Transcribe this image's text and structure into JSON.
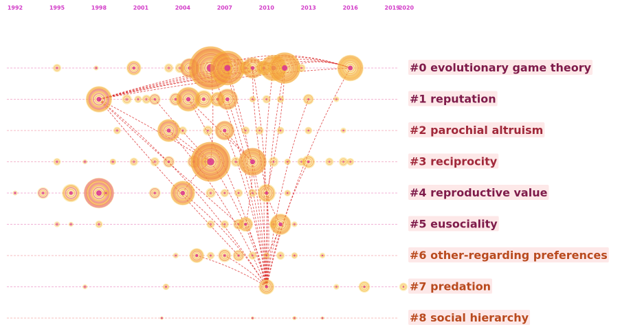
{
  "chart_data": {
    "type": "timeline",
    "title": "",
    "xlabel": "",
    "ylabel": "",
    "years": [
      "1992",
      "1995",
      "1998",
      "2001",
      "2004",
      "2007",
      "2010",
      "2013",
      "2016",
      "2019",
      "2020"
    ],
    "year_values": [
      1992,
      1995,
      1998,
      2001,
      2004,
      2007,
      2010,
      2013,
      2016,
      2019,
      2020
    ],
    "xlim": [
      1992,
      2020
    ],
    "colors": {
      "year_label": "#d23cc8",
      "link": "#d81e1e",
      "timeline_early": "#e0449a",
      "timeline_mid": "#ef7a45",
      "timeline_late": "#f8c02a",
      "node_fill": "#f4a23c",
      "node_ring": "#f5c832",
      "node_core": "#d9338f",
      "label_bg": "#fde8e8",
      "label_text_dark": "#7e1b4a",
      "label_text_mid": "#a0283a",
      "label_text_warm": "#b94a1e"
    },
    "clusters": [
      {
        "id": 0,
        "label": "#0 evolutionary game theory",
        "start": 1992,
        "end": 2016,
        "nodes": [
          [
            1995,
            0.5
          ],
          [
            1997.8,
            0.3
          ],
          [
            2000.5,
            0.9
          ],
          [
            2003,
            0.55
          ],
          [
            2003.8,
            0.6
          ],
          [
            2004.5,
            1.2
          ],
          [
            2006,
            2.6
          ],
          [
            2007.2,
            2.1
          ],
          [
            2008.5,
            0.8
          ],
          [
            2009,
            1.3
          ],
          [
            2009.8,
            0.9
          ],
          [
            2010.5,
            1.6
          ],
          [
            2011.3,
            1.9
          ],
          [
            2012.5,
            0.5
          ],
          [
            2016,
            1.6
          ]
        ]
      },
      {
        "id": 1,
        "label": "#1 reputation",
        "start": 1994,
        "end": 2020,
        "nodes": [
          [
            1998,
            1.6
          ],
          [
            2000,
            0.6
          ],
          [
            2000.8,
            0.45
          ],
          [
            2001.4,
            0.55
          ],
          [
            2002,
            0.7
          ],
          [
            2003.5,
            0.8
          ],
          [
            2004.4,
            1.5
          ],
          [
            2005.5,
            1.1
          ],
          [
            2006.5,
            0.9
          ],
          [
            2007.2,
            1.3
          ],
          [
            2009,
            0.4
          ],
          [
            2010,
            0.5
          ],
          [
            2011,
            0.45
          ],
          [
            2013,
            0.65
          ],
          [
            2015,
            0.35
          ]
        ]
      },
      {
        "id": 2,
        "label": "#2 parochial altruism",
        "start": 1998,
        "end": 2019,
        "nodes": [
          [
            1999.3,
            0.45
          ],
          [
            2003,
            1.4
          ],
          [
            2004,
            0.5
          ],
          [
            2005.8,
            0.6
          ],
          [
            2007,
            1.2
          ],
          [
            2008.5,
            0.5
          ],
          [
            2009.5,
            0.5
          ],
          [
            2011,
            0.45
          ],
          [
            2013,
            0.45
          ],
          [
            2015.5,
            0.35
          ]
        ]
      },
      {
        "id": 3,
        "label": "#3 reciprocity",
        "start": 1995,
        "end": 2016,
        "nodes": [
          [
            1995,
            0.45
          ],
          [
            1997,
            0.3
          ],
          [
            1999,
            0.4
          ],
          [
            2000.5,
            0.5
          ],
          [
            2002,
            0.55
          ],
          [
            2003,
            0.7
          ],
          [
            2004.8,
            0.8
          ],
          [
            2005.6,
            0.5
          ],
          [
            2006,
            2.4
          ],
          [
            2007.8,
            0.6
          ],
          [
            2009,
            1.7
          ],
          [
            2010.5,
            0.6
          ],
          [
            2011.5,
            0.4
          ],
          [
            2012.5,
            0.5
          ],
          [
            2013,
            0.8
          ],
          [
            2014.5,
            0.5
          ],
          [
            2015.5,
            0.55
          ],
          [
            2016,
            0.45
          ]
        ]
      },
      {
        "id": 4,
        "label": "#4 reproductive value",
        "start": 1992,
        "end": 2013,
        "nodes": [
          [
            1992,
            0.3
          ],
          [
            1994,
            0.7
          ],
          [
            1996,
            1.1
          ],
          [
            1998,
            1.85
          ],
          [
            1998.5,
            0.4
          ],
          [
            2002,
            0.7
          ],
          [
            2004,
            1.5
          ],
          [
            2006,
            0.6
          ],
          [
            2007,
            0.5
          ],
          [
            2008,
            0.5
          ],
          [
            2009,
            0.5
          ],
          [
            2010,
            1.1
          ],
          [
            2011.5,
            0.4
          ]
        ]
      },
      {
        "id": 5,
        "label": "#5 eusociality",
        "start": 1992,
        "end": 2016,
        "nodes": [
          [
            1995,
            0.35
          ],
          [
            1996,
            0.3
          ],
          [
            1998,
            0.45
          ],
          [
            2006,
            0.5
          ],
          [
            2007,
            0.5
          ],
          [
            2008,
            0.65
          ],
          [
            2008.5,
            0.9
          ],
          [
            2010.5,
            0.5
          ],
          [
            2011,
            1.3
          ],
          [
            2012,
            0.35
          ]
        ]
      },
      {
        "id": 6,
        "label": "#6 other-regarding preferences",
        "start": 2000,
        "end": 2020,
        "nodes": [
          [
            2003.5,
            0.35
          ],
          [
            2005,
            0.9
          ],
          [
            2006,
            0.45
          ],
          [
            2007,
            0.8
          ],
          [
            2008,
            0.7
          ],
          [
            2009,
            0.5
          ],
          [
            2010,
            0.4
          ],
          [
            2011,
            0.5
          ],
          [
            2012,
            0.4
          ],
          [
            2014,
            0.35
          ]
        ]
      },
      {
        "id": 7,
        "label": "#7 predation",
        "start": 1992,
        "end": 2020,
        "nodes": [
          [
            1997,
            0.3
          ],
          [
            2002.8,
            0.4
          ],
          [
            2010,
            0.95
          ],
          [
            2015,
            0.35
          ],
          [
            2017,
            0.7
          ],
          [
            2019.8,
            0.5
          ]
        ]
      },
      {
        "id": 8,
        "label": "#8 social hierarchy",
        "start": 2001,
        "end": 2020,
        "nodes": [
          [
            2002.5,
            0.2
          ],
          [
            2009,
            0.2
          ],
          [
            2012,
            0.25
          ],
          [
            2014,
            0.2
          ]
        ]
      }
    ],
    "links": [
      [
        0,
        2008,
        1,
        1998
      ],
      [
        0,
        2009,
        1,
        1998
      ],
      [
        0,
        2010.5,
        1,
        1998
      ],
      [
        0,
        2011.3,
        1,
        1998
      ],
      [
        0,
        2016,
        1,
        1998
      ],
      [
        0,
        2007,
        1,
        1998
      ],
      [
        0,
        2006,
        0,
        2016
      ],
      [
        0,
        2007.2,
        0,
        2016
      ],
      [
        0,
        2009,
        0,
        2016
      ],
      [
        0,
        2010.5,
        0,
        2016
      ],
      [
        0,
        2011.3,
        0,
        2016
      ],
      [
        0,
        2004.5,
        0,
        2011.3
      ],
      [
        0,
        2006,
        0,
        2009
      ],
      [
        0,
        2007.2,
        0,
        2010.5
      ],
      [
        1,
        1998,
        3,
        2006
      ],
      [
        1,
        1998,
        6,
        2008
      ],
      [
        1,
        1998,
        5,
        2008
      ],
      [
        1,
        2004.4,
        3,
        2009
      ],
      [
        1,
        2002,
        3,
        2006
      ],
      [
        0,
        2006,
        3,
        2006
      ],
      [
        0,
        2007.2,
        3,
        2009
      ],
      [
        0,
        2011.3,
        4,
        2010
      ],
      [
        0,
        2009,
        4,
        2010
      ],
      [
        7,
        2010,
        0,
        2006
      ],
      [
        7,
        2010,
        0,
        2007.2
      ],
      [
        7,
        2010,
        0,
        2009
      ],
      [
        7,
        2010,
        0,
        2010.5
      ],
      [
        7,
        2010,
        0,
        2011.3
      ],
      [
        7,
        2010,
        0,
        2016
      ],
      [
        7,
        2010,
        1,
        2004.4
      ],
      [
        7,
        2010,
        1,
        2007.2
      ],
      [
        7,
        2010,
        1,
        2013
      ],
      [
        7,
        2010,
        3,
        2006
      ],
      [
        7,
        2010,
        3,
        2009
      ],
      [
        7,
        2010,
        3,
        2013
      ],
      [
        7,
        2010,
        2,
        2007
      ],
      [
        7,
        2010,
        2,
        2003
      ],
      [
        7,
        2010,
        4,
        2004
      ],
      [
        7,
        2010,
        4,
        2010
      ],
      [
        7,
        2010,
        5,
        2008.5
      ],
      [
        7,
        2010,
        5,
        2011
      ],
      [
        7,
        2010,
        6,
        2005
      ],
      [
        7,
        2010,
        6,
        2007
      ],
      [
        7,
        2010,
        6,
        2010
      ],
      [
        7,
        2010,
        1,
        1998
      ],
      [
        2,
        2003,
        3,
        2006
      ],
      [
        2,
        2007,
        3,
        2009
      ],
      [
        4,
        2004,
        3,
        2006
      ],
      [
        4,
        2010,
        5,
        2011
      ],
      [
        5,
        2011,
        6,
        2010
      ],
      [
        3,
        2009,
        5,
        2008.5
      ]
    ]
  }
}
